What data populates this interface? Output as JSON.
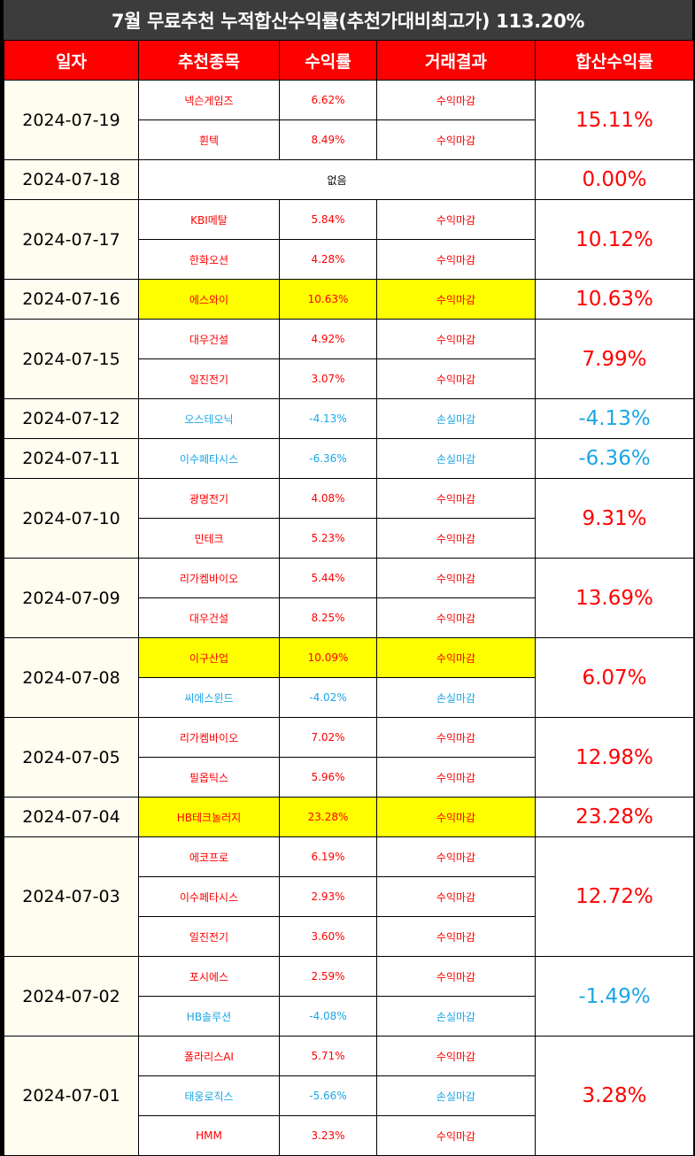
{
  "title": "7월 무료추천 누적합산수익률(추천가대비최고가) 113.20%",
  "headers": [
    "일자",
    "추천종목",
    "수익률",
    "거래결과",
    "합산수익률"
  ],
  "days": [
    {
      "date": "2024-07-19",
      "total": "15.11%",
      "total_color": "red",
      "items": [
        {
          "stock": "넥슨게임즈",
          "rate": "6.62%",
          "result": "수익마감",
          "color": "red",
          "highlight": false
        },
        {
          "stock": "휜텍",
          "rate": "8.49%",
          "result": "수익마감",
          "color": "red",
          "highlight": false
        }
      ]
    },
    {
      "date": "2024-07-18",
      "total": "0.00%",
      "total_color": "red",
      "none": "없음",
      "items": []
    },
    {
      "date": "2024-07-17",
      "total": "10.12%",
      "total_color": "red",
      "items": [
        {
          "stock": "KBI메탈",
          "rate": "5.84%",
          "result": "수익마감",
          "color": "red",
          "highlight": false
        },
        {
          "stock": "한화오션",
          "rate": "4.28%",
          "result": "수익마감",
          "color": "red",
          "highlight": false
        }
      ]
    },
    {
      "date": "2024-07-16",
      "total": "10.63%",
      "total_color": "red",
      "items": [
        {
          "stock": "에스와이",
          "rate": "10.63%",
          "result": "수익마감",
          "color": "red",
          "highlight": true
        }
      ]
    },
    {
      "date": "2024-07-15",
      "total": "7.99%",
      "total_color": "red",
      "items": [
        {
          "stock": "대우건설",
          "rate": "4.92%",
          "result": "수익마감",
          "color": "red",
          "highlight": false
        },
        {
          "stock": "일진전기",
          "rate": "3.07%",
          "result": "수익마감",
          "color": "red",
          "highlight": false
        }
      ]
    },
    {
      "date": "2024-07-12",
      "total": "-4.13%",
      "total_color": "blue",
      "items": [
        {
          "stock": "오스테오닉",
          "rate": "-4.13%",
          "result": "손실마감",
          "color": "blue",
          "highlight": false
        }
      ]
    },
    {
      "date": "2024-07-11",
      "total": "-6.36%",
      "total_color": "blue",
      "items": [
        {
          "stock": "이수페타시스",
          "rate": "-6.36%",
          "result": "손실마감",
          "color": "blue",
          "highlight": false
        }
      ]
    },
    {
      "date": "2024-07-10",
      "total": "9.31%",
      "total_color": "red",
      "items": [
        {
          "stock": "광명전기",
          "rate": "4.08%",
          "result": "수익마감",
          "color": "red",
          "highlight": false
        },
        {
          "stock": "민테크",
          "rate": "5.23%",
          "result": "수익마감",
          "color": "red",
          "highlight": false
        }
      ]
    },
    {
      "date": "2024-07-09",
      "total": "13.69%",
      "total_color": "red",
      "items": [
        {
          "stock": "리가켐바이오",
          "rate": "5.44%",
          "result": "수익마감",
          "color": "red",
          "highlight": false
        },
        {
          "stock": "대우건설",
          "rate": "8.25%",
          "result": "수익마감",
          "color": "red",
          "highlight": false
        }
      ]
    },
    {
      "date": "2024-07-08",
      "total": "6.07%",
      "total_color": "red",
      "items": [
        {
          "stock": "이구산업",
          "rate": "10.09%",
          "result": "수익마감",
          "color": "red",
          "highlight": true
        },
        {
          "stock": "씨에스윈드",
          "rate": "-4.02%",
          "result": "손실마감",
          "color": "blue",
          "highlight": false
        }
      ]
    },
    {
      "date": "2024-07-05",
      "total": "12.98%",
      "total_color": "red",
      "items": [
        {
          "stock": "리가켐바이오",
          "rate": "7.02%",
          "result": "수익마감",
          "color": "red",
          "highlight": false
        },
        {
          "stock": "필옵틱스",
          "rate": "5.96%",
          "result": "수익마감",
          "color": "red",
          "highlight": false
        }
      ]
    },
    {
      "date": "2024-07-04",
      "total": "23.28%",
      "total_color": "red",
      "items": [
        {
          "stock": "HB테크놀러지",
          "rate": "23.28%",
          "result": "수익마감",
          "color": "red",
          "highlight": true
        }
      ]
    },
    {
      "date": "2024-07-03",
      "total": "12.72%",
      "total_color": "red",
      "items": [
        {
          "stock": "에코프로",
          "rate": "6.19%",
          "result": "수익마감",
          "color": "red",
          "highlight": false
        },
        {
          "stock": "이수페타시스",
          "rate": "2.93%",
          "result": "수익마감",
          "color": "red",
          "highlight": false
        },
        {
          "stock": "일진전기",
          "rate": "3.60%",
          "result": "수익마감",
          "color": "red",
          "highlight": false
        }
      ]
    },
    {
      "date": "2024-07-02",
      "total": "-1.49%",
      "total_color": "blue",
      "items": [
        {
          "stock": "포시에스",
          "rate": "2.59%",
          "result": "수익마감",
          "color": "red",
          "highlight": false
        },
        {
          "stock": "HB솔루션",
          "rate": "-4.08%",
          "result": "손실마감",
          "color": "blue",
          "highlight": false
        }
      ]
    },
    {
      "date": "2024-07-01",
      "total": "3.28%",
      "total_color": "red",
      "items": [
        {
          "stock": "폴라리스AI",
          "rate": "5.71%",
          "result": "수익마감",
          "color": "red",
          "highlight": false
        },
        {
          "stock": "태웅로직스",
          "rate": "-5.66%",
          "result": "손실마감",
          "color": "blue",
          "highlight": false
        },
        {
          "stock": "HMM",
          "rate": "3.23%",
          "result": "수익마감",
          "color": "red",
          "highlight": false
        }
      ]
    }
  ]
}
